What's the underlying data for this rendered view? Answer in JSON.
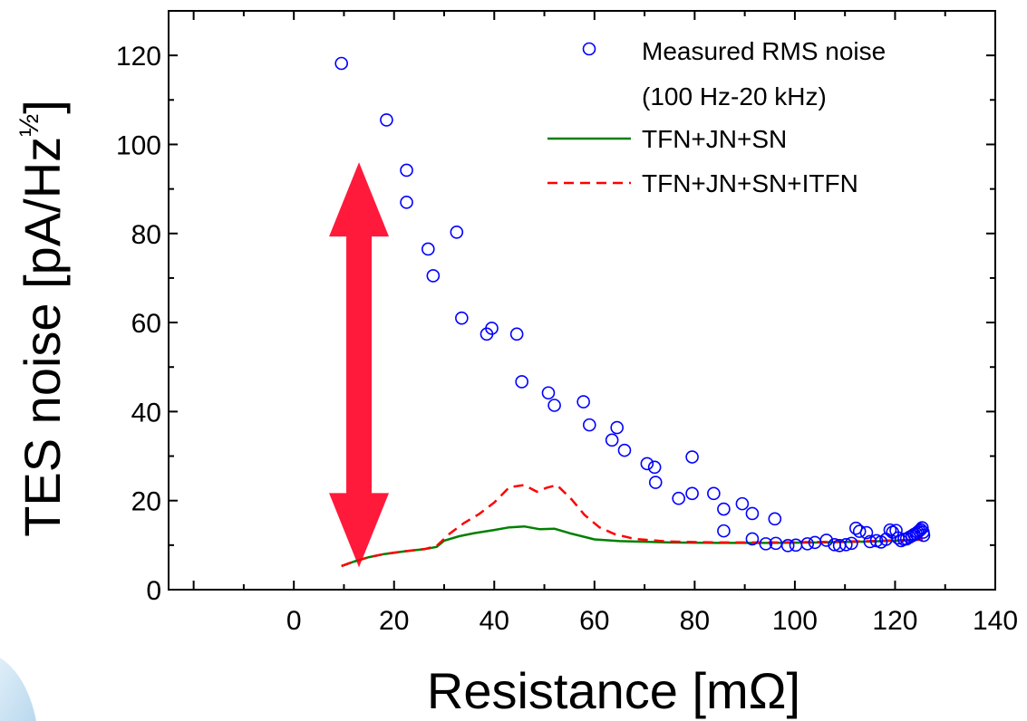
{
  "chart_data": {
    "type": "scatter",
    "xlabel": "Resistance [mΩ]",
    "ylabel": "TES noise [pA/Hz",
    "ylabel_exponent": "½",
    "ylabel_close": "]",
    "xlim": [
      -25,
      140
    ],
    "ylim": [
      0,
      130
    ],
    "x_ticks": [
      0,
      20,
      40,
      60,
      80,
      100,
      120,
      140
    ],
    "y_ticks": [
      0,
      20,
      40,
      60,
      80,
      100,
      120
    ],
    "grid": false,
    "legend_position": "top-right",
    "series": [
      {
        "name": "Measured RMS noise",
        "name_line2": "(100 Hz-20 kHz)",
        "kind": "scatter",
        "color": "#0000ff",
        "marker": "open-circle",
        "points": [
          [
            9.5,
            118.2
          ],
          [
            18.5,
            105.5
          ],
          [
            22.5,
            94.2
          ],
          [
            22.5,
            87.0
          ],
          [
            26.8,
            76.5
          ],
          [
            27.8,
            70.5
          ],
          [
            32.5,
            80.3
          ],
          [
            33.5,
            61.0
          ],
          [
            38.5,
            57.4
          ],
          [
            39.5,
            58.7
          ],
          [
            44.5,
            57.4
          ],
          [
            45.5,
            46.7
          ],
          [
            50.8,
            44.2
          ],
          [
            52.0,
            41.4
          ],
          [
            57.8,
            42.2
          ],
          [
            59.0,
            37.0
          ],
          [
            63.5,
            33.6
          ],
          [
            64.5,
            36.4
          ],
          [
            66.0,
            31.3
          ],
          [
            70.5,
            28.3
          ],
          [
            72.0,
            27.5
          ],
          [
            72.2,
            24.1
          ],
          [
            76.8,
            20.5
          ],
          [
            79.5,
            29.8
          ],
          [
            79.5,
            21.6
          ],
          [
            83.8,
            21.6
          ],
          [
            85.8,
            18.1
          ],
          [
            85.8,
            13.2
          ],
          [
            89.5,
            19.3
          ],
          [
            91.5,
            17.1
          ],
          [
            91.5,
            11.4
          ],
          [
            94.2,
            10.3
          ],
          [
            96.0,
            15.9
          ],
          [
            96.2,
            10.4
          ],
          [
            98.6,
            9.9
          ],
          [
            100.2,
            10.0
          ],
          [
            102.5,
            10.3
          ],
          [
            104.0,
            10.6
          ],
          [
            106.3,
            11.1
          ],
          [
            107.9,
            10.1
          ],
          [
            108.9,
            9.9
          ],
          [
            110.2,
            10.1
          ],
          [
            111.3,
            10.4
          ],
          [
            112.2,
            13.8
          ],
          [
            112.9,
            13.1
          ],
          [
            114.3,
            12.8
          ],
          [
            115.0,
            10.8
          ],
          [
            116.3,
            11.0
          ],
          [
            117.2,
            10.7
          ],
          [
            118.2,
            11.3
          ],
          [
            119.0,
            13.4
          ],
          [
            119.5,
            12.9
          ],
          [
            120.2,
            13.3
          ],
          [
            120.6,
            11.6
          ],
          [
            121.2,
            11.0
          ],
          [
            121.8,
            11.3
          ],
          [
            122.3,
            11.4
          ],
          [
            122.9,
            11.8
          ],
          [
            123.4,
            12.1
          ],
          [
            123.8,
            12.4
          ],
          [
            124.2,
            12.6
          ],
          [
            124.5,
            12.9
          ],
          [
            124.8,
            13.2
          ],
          [
            125.1,
            13.5
          ],
          [
            125.4,
            13.9
          ],
          [
            125.6,
            12.9
          ],
          [
            125.7,
            12.2
          ]
        ]
      },
      {
        "name": "TFN+JN+SN",
        "kind": "line",
        "color": "#008000",
        "dash": "solid",
        "points": [
          [
            9.5,
            5.3
          ],
          [
            12,
            6.3
          ],
          [
            15,
            7.3
          ],
          [
            18,
            8.0
          ],
          [
            22,
            8.6
          ],
          [
            26,
            9.1
          ],
          [
            28.5,
            9.6
          ],
          [
            30,
            11.0
          ],
          [
            33,
            12.0
          ],
          [
            36,
            12.7
          ],
          [
            40,
            13.4
          ],
          [
            43,
            14.0
          ],
          [
            46,
            14.2
          ],
          [
            49,
            13.6
          ],
          [
            52,
            13.7
          ],
          [
            55,
            12.7
          ],
          [
            60,
            11.3
          ],
          [
            65,
            10.9
          ],
          [
            75,
            10.6
          ],
          [
            85,
            10.5
          ],
          [
            95,
            10.5
          ],
          [
            105,
            10.6
          ],
          [
            115,
            10.8
          ],
          [
            125.5,
            11.2
          ]
        ]
      },
      {
        "name": "TFN+JN+SN+ITFN",
        "kind": "line",
        "color": "#ff0000",
        "dash": "dashed",
        "points": [
          [
            9.5,
            5.3
          ],
          [
            12,
            6.3
          ],
          [
            15,
            7.3
          ],
          [
            18,
            8.0
          ],
          [
            22,
            8.6
          ],
          [
            26,
            9.1
          ],
          [
            28.5,
            9.8
          ],
          [
            31,
            12.5
          ],
          [
            34,
            15.0
          ],
          [
            37,
            17.0
          ],
          [
            40,
            19.6
          ],
          [
            43,
            23.0
          ],
          [
            46,
            23.5
          ],
          [
            48.5,
            22.0
          ],
          [
            50.5,
            22.9
          ],
          [
            52.5,
            23.5
          ],
          [
            55.5,
            20.2
          ],
          [
            58,
            16.8
          ],
          [
            61,
            14.0
          ],
          [
            64,
            12.5
          ],
          [
            68,
            11.4
          ],
          [
            75,
            10.8
          ],
          [
            85,
            10.6
          ],
          [
            95,
            10.6
          ],
          [
            105,
            10.7
          ],
          [
            115,
            10.9
          ],
          [
            125.5,
            11.3
          ]
        ]
      }
    ],
    "annotation": {
      "kind": "double-arrow",
      "color": "#ff1a3c",
      "x": 13,
      "y_from": 5,
      "y_to": 96
    }
  }
}
